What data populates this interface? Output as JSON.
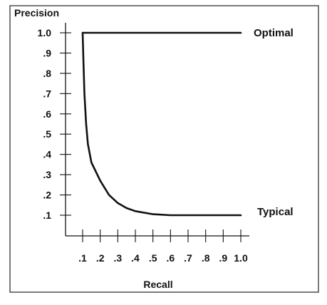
{
  "chart_data": {
    "type": "line",
    "title": "",
    "xlabel": "Recall",
    "ylabel": "Precision",
    "xlim": [
      0,
      1.0
    ],
    "ylim": [
      0,
      1.0
    ],
    "grid": false,
    "x_ticks": [
      0.1,
      0.2,
      0.3,
      0.4,
      0.5,
      0.6,
      0.7,
      0.8,
      0.9,
      1.0
    ],
    "x_tick_labels": [
      ".1",
      ".2",
      ".3",
      ".4",
      ".5",
      ".6",
      ".7",
      ".8",
      ".9",
      "1.0"
    ],
    "y_ticks": [
      0.1,
      0.2,
      0.3,
      0.4,
      0.5,
      0.6,
      0.7,
      0.8,
      0.9,
      1.0
    ],
    "y_tick_labels": [
      ".1",
      ".2",
      ".3",
      ".4",
      ".5",
      ".6",
      ".7",
      ".8",
      ".9",
      "1.0"
    ],
    "series": [
      {
        "name": "Optimal",
        "x": [
          0.1,
          1.0
        ],
        "y": [
          1.0,
          1.0
        ]
      },
      {
        "name": "Typical",
        "x": [
          0.1,
          0.105,
          0.11,
          0.12,
          0.13,
          0.15,
          0.2,
          0.25,
          0.3,
          0.35,
          0.4,
          0.5,
          0.6,
          0.7,
          0.8,
          0.9,
          1.0
        ],
        "y": [
          1.0,
          0.85,
          0.7,
          0.55,
          0.45,
          0.36,
          0.27,
          0.2,
          0.16,
          0.135,
          0.12,
          0.105,
          0.1,
          0.1,
          0.1,
          0.1,
          0.1
        ]
      }
    ]
  }
}
